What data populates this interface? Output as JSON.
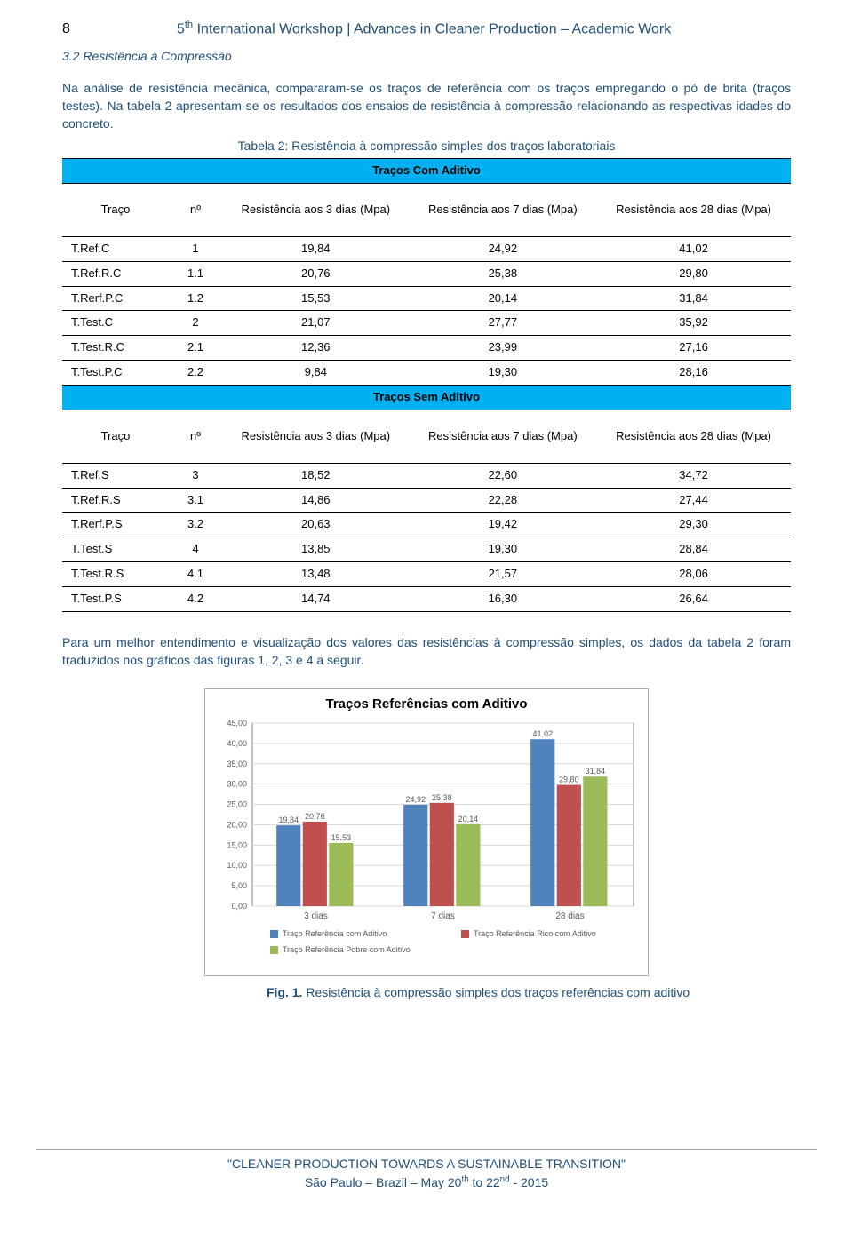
{
  "header": {
    "page_number": "8",
    "workshop_title_html": "5<sup>th</sup> International Workshop | Advances in Cleaner Production – Academic Work"
  },
  "section_heading": "3.2 Resistência à Compressão",
  "paragraph1": "Na análise de resistência mecânica, compararam-se os traços de referência com os traços empregando o pó de brita (traços testes). Na tabela 2 apresentam-se os resultados dos ensaios de resistência à compressão relacionando as respectivas idades do concreto.",
  "table_caption": "Tabela 2: Resistência à compressão simples dos traços laboratoriais",
  "table": {
    "section1_title": "Traços Com Aditivo",
    "section2_title": "Traços Sem Aditivo",
    "columns": [
      "Traço",
      "nº",
      "Resistência aos 3 dias (Mpa)",
      "Resistência aos 7 dias (Mpa)",
      "Resistência aos 28 dias (Mpa)"
    ],
    "rows_sec1": [
      [
        "T.Ref.C",
        "1",
        "19,84",
        "24,92",
        "41,02"
      ],
      [
        "T.Ref.R.C",
        "1.1",
        "20,76",
        "25,38",
        "29,80"
      ],
      [
        "T.Rerf.P.C",
        "1.2",
        "15,53",
        "20,14",
        "31,84"
      ],
      [
        "T.Test.C",
        "2",
        "21,07",
        "27,77",
        "35,92"
      ],
      [
        "T.Test.R.C",
        "2.1",
        "12,36",
        "23,99",
        "27,16"
      ],
      [
        "T.Test.P.C",
        "2.2",
        "9,84",
        "19,30",
        "28,16"
      ]
    ],
    "rows_sec2": [
      [
        "T.Ref.S",
        "3",
        "18,52",
        "22,60",
        "34,72"
      ],
      [
        "T.Ref.R.S",
        "3.1",
        "14,86",
        "22,28",
        "27,44"
      ],
      [
        "T.Rerf.P.S",
        "3.2",
        "20,63",
        "19,42",
        "29,30"
      ],
      [
        "T.Test.S",
        "4",
        "13,85",
        "19,30",
        "28,84"
      ],
      [
        "T.Test.R.S",
        "4.1",
        "13,48",
        "21,57",
        "28,06"
      ],
      [
        "T.Test.P.S",
        "4.2",
        "14,74",
        "16,30",
        "26,64"
      ]
    ]
  },
  "paragraph2": "Para um melhor entendimento e visualização dos valores das resistências à compressão simples, os dados da tabela 2 foram traduzidos nos gráficos das figuras 1, 2, 3 e 4 a seguir.",
  "chart": {
    "type": "bar",
    "title": "Traços Referências com Aditivo",
    "categories": [
      "3 dias",
      "7 dias",
      "28 dias"
    ],
    "series": [
      {
        "name": "Traço Referência com Aditivo",
        "color": "#4f81bd",
        "values": [
          19.84,
          24.92,
          41.02
        ]
      },
      {
        "name": "Traço Referência Rico com Aditivo",
        "color": "#c0504d",
        "values": [
          20.76,
          25.38,
          29.8
        ]
      },
      {
        "name": "Traço Referência Pobre com Aditivo",
        "color": "#9bbb59",
        "values": [
          15.53,
          20.14,
          31.84
        ]
      }
    ],
    "ylim": [
      0,
      45
    ],
    "ytick_step": 5,
    "grid_color": "#d9d9d9",
    "axis_color": "#808080",
    "label_fontsize": 9,
    "bar_group_width": 0.62,
    "plot_background": "#ffffff"
  },
  "figure_caption": {
    "prefix": "Fig. 1.",
    "text": " Resistência à compressão simples dos traços referências com aditivo"
  },
  "footer": {
    "line1": "\"CLEANER PRODUCTION TOWARDS A SUSTAINABLE TRANSITION\"",
    "line2_html": "São Paulo – Brazil – May 20<sup>th</sup> to 22<sup>nd</sup> - 2015"
  }
}
